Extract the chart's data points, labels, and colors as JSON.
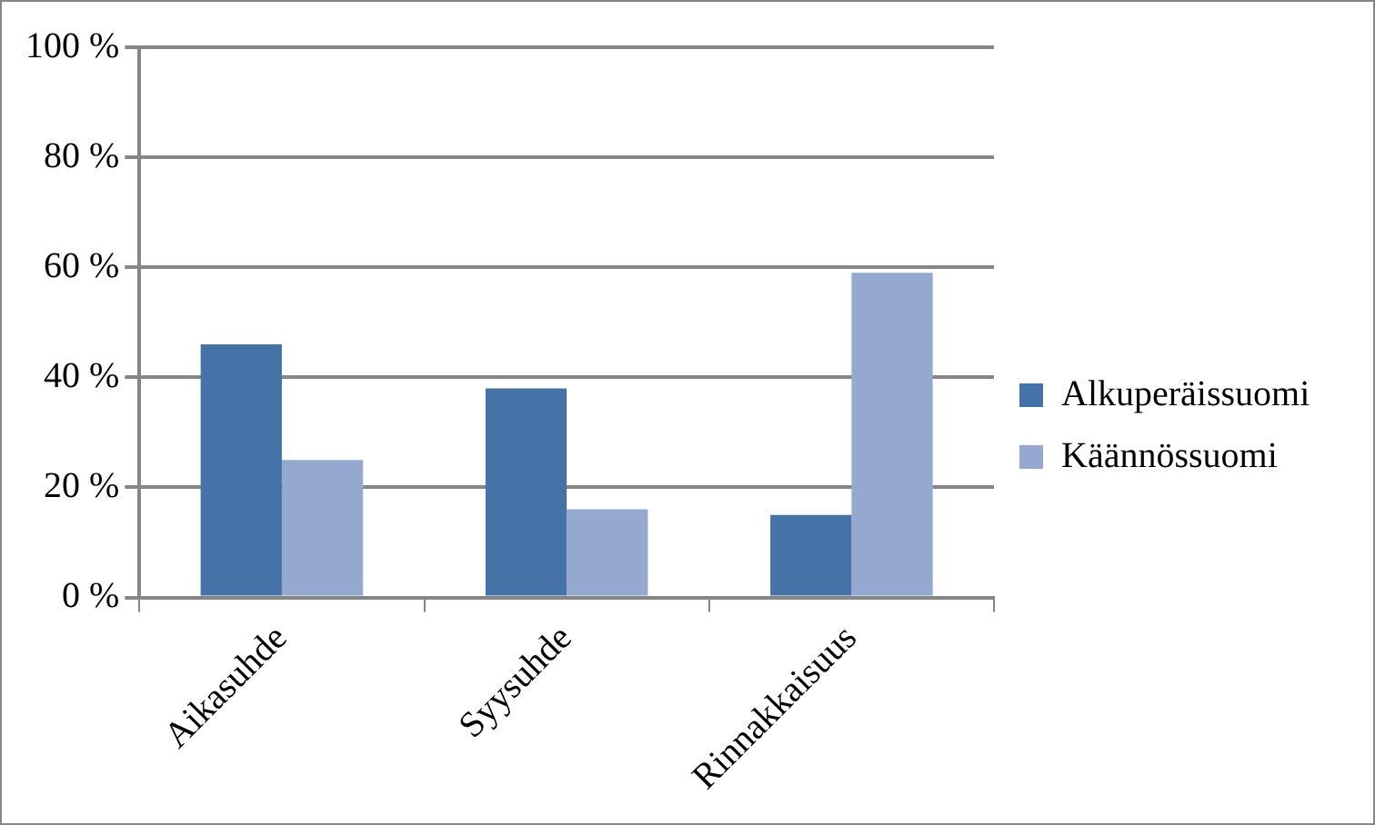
{
  "chart_data": {
    "type": "bar",
    "categories": [
      "Aikasuhde",
      "Syysuhde",
      "Rinnakkaisuus"
    ],
    "series": [
      {
        "name": "Alkuperäissuomi",
        "color": "#4573a7",
        "values": [
          46,
          38,
          15
        ]
      },
      {
        "name": "Käännössuomi",
        "color": "#95a9d0",
        "values": [
          25,
          16,
          59
        ]
      }
    ],
    "ylim": [
      0,
      100
    ],
    "yticks": [
      {
        "value": 0,
        "label": "0 %"
      },
      {
        "value": 20,
        "label": "20 %"
      },
      {
        "value": 40,
        "label": "40 %"
      },
      {
        "value": 60,
        "label": "60 %"
      },
      {
        "value": 80,
        "label": "80 %"
      },
      {
        "value": 100,
        "label": "100 %"
      }
    ],
    "grid": "y",
    "legend": "right"
  }
}
